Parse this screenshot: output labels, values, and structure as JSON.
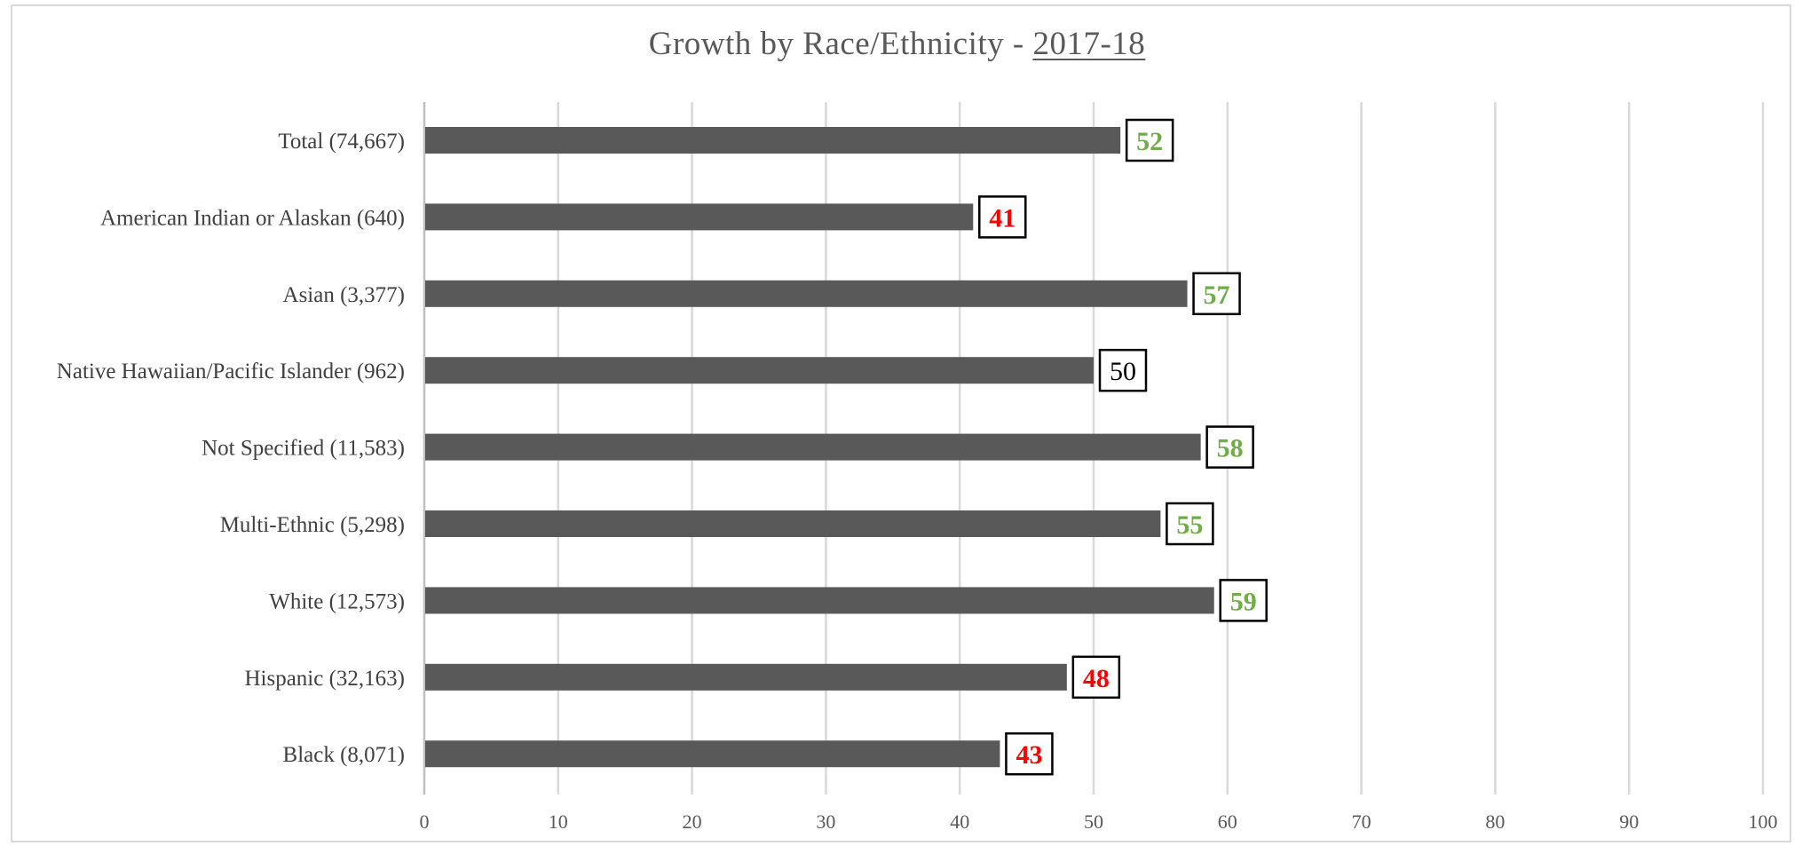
{
  "chart_data": {
    "type": "bar",
    "orientation": "horizontal",
    "title": "Growth by Race/Ethnicity - ",
    "title_year": "2017-18",
    "xlabel": "",
    "ylabel": "",
    "xlim": [
      0,
      100
    ],
    "x_ticks": [
      0,
      10,
      20,
      30,
      40,
      50,
      60,
      70,
      80,
      90,
      100
    ],
    "grid": "vertical",
    "bar_color": "#595959",
    "label_colors": {
      "above": "#70ad47",
      "below": "#ff0000",
      "neutral": "#000000"
    },
    "categories": [
      "Total (74,667)",
      "American Indian or Alaskan (640)",
      "Asian (3,377)",
      "Native Hawaiian/Pacific Islander (962)",
      "Not Specified (11,583)",
      "Multi-Ethnic (5,298)",
      "White (12,573)",
      "Hispanic (32,163)",
      "Black (8,071)"
    ],
    "values": [
      52,
      41,
      57,
      50,
      58,
      55,
      59,
      48,
      43
    ],
    "label_status": [
      "above",
      "below",
      "above",
      "neutral",
      "above",
      "above",
      "above",
      "below",
      "below"
    ]
  }
}
